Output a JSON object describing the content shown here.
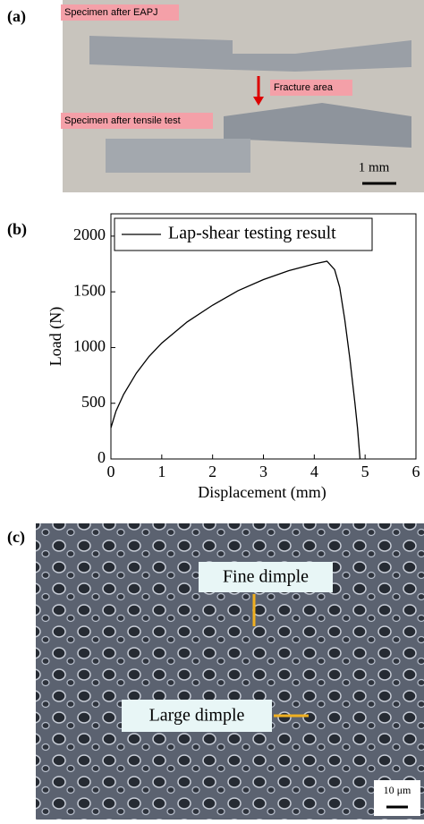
{
  "panel_labels": [
    "(a)",
    "(b)",
    "(c)"
  ],
  "photo": {
    "labels": [
      "Specimen after EAPJ",
      "Fracture area",
      "Specimen after tensile test"
    ],
    "scale_bar": "1 mm"
  },
  "chart_data": {
    "type": "line",
    "xlabel": "Displacement (mm)",
    "ylabel": "Load (N)",
    "x": [
      0,
      0.1,
      0.25,
      0.5,
      0.75,
      1,
      1.5,
      2,
      2.5,
      3,
      3.5,
      4,
      4.25,
      4.4,
      4.5,
      4.6,
      4.7,
      4.8,
      4.85,
      4.9
    ],
    "series": [
      {
        "name": "Lap-shear testing result",
        "color": "#000000",
        "values": [
          280,
          430,
          580,
          770,
          920,
          1040,
          1230,
          1380,
          1510,
          1610,
          1690,
          1750,
          1775,
          1700,
          1540,
          1250,
          900,
          500,
          280,
          0
        ]
      }
    ],
    "xlim": [
      0,
      6
    ],
    "ylim": [
      0,
      2200
    ],
    "xticks": [
      0,
      1,
      2,
      3,
      4,
      5,
      6
    ],
    "yticks": [
      0,
      500,
      1000,
      1500,
      2000
    ],
    "legend": "upper left"
  },
  "sem": {
    "labels": [
      "Fine dimple",
      "Large dimple"
    ],
    "scale_bar": "10 μm"
  }
}
